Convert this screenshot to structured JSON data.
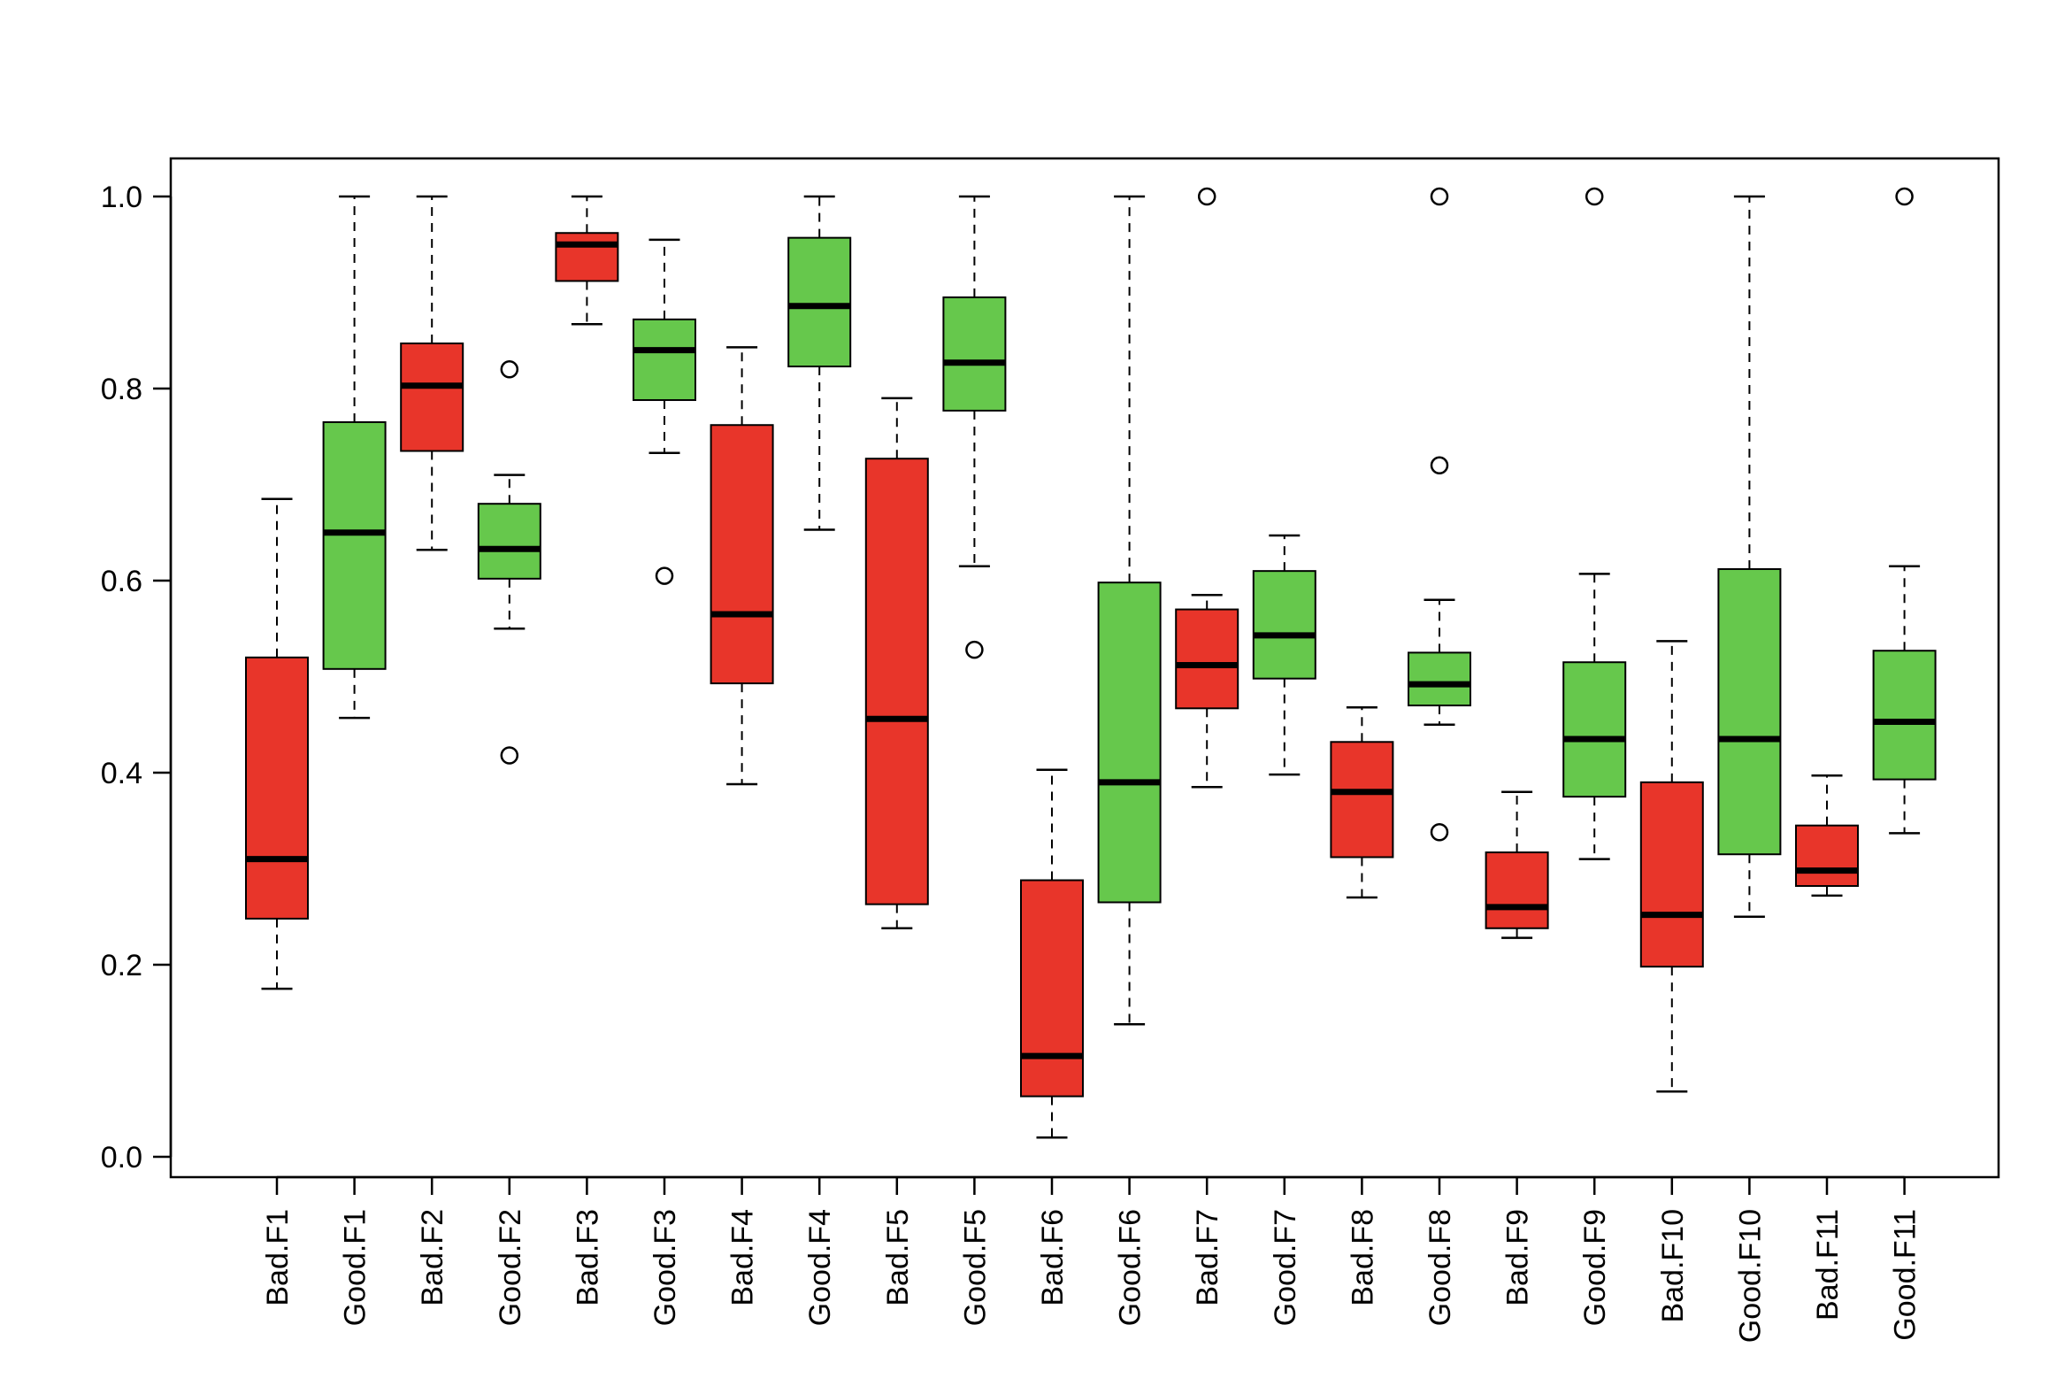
{
  "chart_data": {
    "type": "box",
    "title": "",
    "xlabel": "",
    "ylabel": "",
    "ylim": [
      0.0,
      1.0
    ],
    "yticks": [
      0.0,
      0.2,
      0.4,
      0.6,
      0.8,
      1.0
    ],
    "ytick_labels": [
      "0.0",
      "0.2",
      "0.4",
      "0.6",
      "0.8",
      "1.0"
    ],
    "grid": false,
    "colors": {
      "Bad": "#e8352a",
      "Good": "#66c84c"
    },
    "boxes": [
      {
        "label": "Bad.F1",
        "group": "Bad",
        "lower_whisker": 0.175,
        "q1": 0.248,
        "median": 0.31,
        "q3": 0.52,
        "upper_whisker": 0.685,
        "outliers": []
      },
      {
        "label": "Good.F1",
        "group": "Good",
        "lower_whisker": 0.457,
        "q1": 0.508,
        "median": 0.65,
        "q3": 0.765,
        "upper_whisker": 1.0,
        "outliers": []
      },
      {
        "label": "Bad.F2",
        "group": "Bad",
        "lower_whisker": 0.632,
        "q1": 0.735,
        "median": 0.803,
        "q3": 0.847,
        "upper_whisker": 1.0,
        "outliers": []
      },
      {
        "label": "Good.F2",
        "group": "Good",
        "lower_whisker": 0.55,
        "q1": 0.602,
        "median": 0.633,
        "q3": 0.68,
        "upper_whisker": 0.71,
        "outliers": [
          0.418,
          0.82
        ]
      },
      {
        "label": "Bad.F3",
        "group": "Bad",
        "lower_whisker": 0.867,
        "q1": 0.912,
        "median": 0.95,
        "q3": 0.962,
        "upper_whisker": 1.0,
        "outliers": []
      },
      {
        "label": "Good.F3",
        "group": "Good",
        "lower_whisker": 0.733,
        "q1": 0.788,
        "median": 0.84,
        "q3": 0.872,
        "upper_whisker": 0.955,
        "outliers": [
          0.605
        ]
      },
      {
        "label": "Bad.F4",
        "group": "Bad",
        "lower_whisker": 0.388,
        "q1": 0.493,
        "median": 0.565,
        "q3": 0.762,
        "upper_whisker": 0.843,
        "outliers": []
      },
      {
        "label": "Good.F4",
        "group": "Good",
        "lower_whisker": 0.653,
        "q1": 0.823,
        "median": 0.886,
        "q3": 0.957,
        "upper_whisker": 1.0,
        "outliers": []
      },
      {
        "label": "Bad.F5",
        "group": "Bad",
        "lower_whisker": 0.238,
        "q1": 0.263,
        "median": 0.456,
        "q3": 0.727,
        "upper_whisker": 0.79,
        "outliers": []
      },
      {
        "label": "Good.F5",
        "group": "Good",
        "lower_whisker": 0.615,
        "q1": 0.777,
        "median": 0.827,
        "q3": 0.895,
        "upper_whisker": 1.0,
        "outliers": [
          0.528
        ]
      },
      {
        "label": "Bad.F6",
        "group": "Bad",
        "lower_whisker": 0.02,
        "q1": 0.063,
        "median": 0.105,
        "q3": 0.288,
        "upper_whisker": 0.403,
        "outliers": []
      },
      {
        "label": "Good.F6",
        "group": "Good",
        "lower_whisker": 0.138,
        "q1": 0.265,
        "median": 0.39,
        "q3": 0.598,
        "upper_whisker": 1.0,
        "outliers": []
      },
      {
        "label": "Bad.F7",
        "group": "Bad",
        "lower_whisker": 0.385,
        "q1": 0.467,
        "median": 0.512,
        "q3": 0.57,
        "upper_whisker": 0.585,
        "outliers": [
          1.0
        ]
      },
      {
        "label": "Good.F7",
        "group": "Good",
        "lower_whisker": 0.398,
        "q1": 0.498,
        "median": 0.543,
        "q3": 0.61,
        "upper_whisker": 0.647,
        "outliers": []
      },
      {
        "label": "Bad.F8",
        "group": "Bad",
        "lower_whisker": 0.27,
        "q1": 0.312,
        "median": 0.38,
        "q3": 0.432,
        "upper_whisker": 0.468,
        "outliers": []
      },
      {
        "label": "Good.F8",
        "group": "Good",
        "lower_whisker": 0.45,
        "q1": 0.47,
        "median": 0.492,
        "q3": 0.525,
        "upper_whisker": 0.58,
        "outliers": [
          0.338,
          0.72,
          1.0
        ]
      },
      {
        "label": "Bad.F9",
        "group": "Bad",
        "lower_whisker": 0.228,
        "q1": 0.238,
        "median": 0.26,
        "q3": 0.317,
        "upper_whisker": 0.38,
        "outliers": []
      },
      {
        "label": "Good.F9",
        "group": "Good",
        "lower_whisker": 0.31,
        "q1": 0.375,
        "median": 0.435,
        "q3": 0.515,
        "upper_whisker": 0.607,
        "outliers": [
          1.0
        ]
      },
      {
        "label": "Bad.F10",
        "group": "Bad",
        "lower_whisker": 0.068,
        "q1": 0.198,
        "median": 0.252,
        "q3": 0.39,
        "upper_whisker": 0.537,
        "outliers": []
      },
      {
        "label": "Good.F10",
        "group": "Good",
        "lower_whisker": 0.25,
        "q1": 0.315,
        "median": 0.435,
        "q3": 0.612,
        "upper_whisker": 1.0,
        "outliers": []
      },
      {
        "label": "Bad.F11",
        "group": "Bad",
        "lower_whisker": 0.272,
        "q1": 0.282,
        "median": 0.298,
        "q3": 0.345,
        "upper_whisker": 0.397,
        "outliers": []
      },
      {
        "label": "Good.F11",
        "group": "Good",
        "lower_whisker": 0.337,
        "q1": 0.393,
        "median": 0.453,
        "q3": 0.527,
        "upper_whisker": 0.615,
        "outliers": [
          1.0
        ]
      }
    ]
  }
}
